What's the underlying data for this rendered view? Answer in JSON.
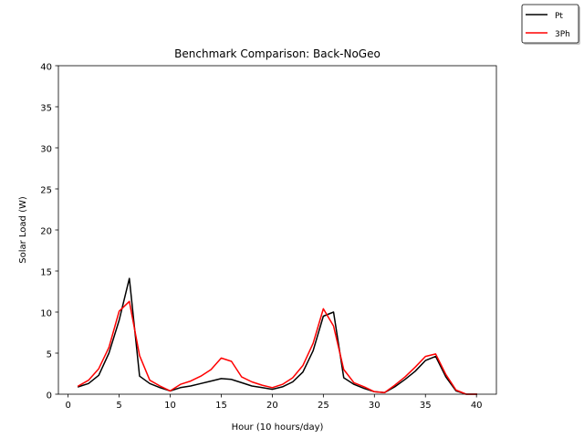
{
  "chart_data": {
    "type": "line",
    "title": "Benchmark Comparison: Back-NoGeo",
    "xlabel": "Hour (10 hours/day)",
    "ylabel": "Solar Load (W)",
    "xlim": [
      -0.95,
      41.95
    ],
    "ylim": [
      0,
      40
    ],
    "xticks": [
      0,
      5,
      10,
      15,
      20,
      25,
      30,
      35,
      40
    ],
    "yticks": [
      0,
      5,
      10,
      15,
      20,
      25,
      30,
      35,
      40
    ],
    "grid": false,
    "legend_position": "top-right",
    "x": [
      1,
      2,
      3,
      4,
      5,
      6,
      7,
      8,
      9,
      10,
      11,
      12,
      13,
      14,
      15,
      16,
      17,
      18,
      19,
      20,
      21,
      22,
      23,
      24,
      25,
      26,
      27,
      28,
      29,
      30,
      31,
      32,
      33,
      34,
      35,
      36,
      37,
      38,
      39,
      40
    ],
    "series": [
      {
        "name": "Pt",
        "color": "#000000",
        "values": [
          0.9,
          1.3,
          2.3,
          5.0,
          9.0,
          14.1,
          2.2,
          1.3,
          0.8,
          0.4,
          0.8,
          1.0,
          1.3,
          1.6,
          1.9,
          1.8,
          1.4,
          1.0,
          0.8,
          0.6,
          0.9,
          1.5,
          2.7,
          5.3,
          9.5,
          10.0,
          2.0,
          1.2,
          0.7,
          0.3,
          0.2,
          0.9,
          1.8,
          2.8,
          4.1,
          4.6,
          2.1,
          0.4,
          0.0,
          0.0
        ]
      },
      {
        "name": "3Ph",
        "color": "#ff0000",
        "values": [
          1.0,
          1.7,
          3.1,
          5.7,
          10.1,
          11.3,
          4.7,
          1.7,
          1.0,
          0.4,
          1.2,
          1.6,
          2.2,
          3.0,
          4.4,
          4.0,
          2.1,
          1.5,
          1.1,
          0.8,
          1.2,
          2.0,
          3.5,
          6.2,
          10.4,
          8.3,
          3.0,
          1.4,
          0.9,
          0.3,
          0.2,
          1.1,
          2.1,
          3.3,
          4.6,
          4.9,
          2.4,
          0.5,
          0.0,
          0.0
        ]
      }
    ]
  }
}
